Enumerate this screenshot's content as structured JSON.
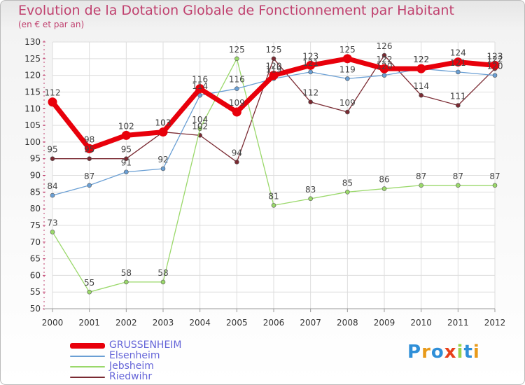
{
  "chart_data": {
    "type": "line",
    "title": "Evolution de la Dotation Globale de Fonctionnement par Habitant",
    "subtitle": "(en € et par an)",
    "xlabel": "",
    "ylabel": "",
    "x": [
      "2000",
      "2001",
      "2002",
      "2003",
      "2004",
      "2005",
      "2006",
      "2007",
      "2008",
      "2009",
      "2010",
      "2011",
      "2012"
    ],
    "ylim": [
      50,
      130
    ],
    "yticks": [
      50,
      55,
      60,
      65,
      70,
      75,
      80,
      85,
      90,
      95,
      100,
      105,
      110,
      115,
      120,
      125,
      130
    ],
    "grid": true,
    "legend": "bottom-left",
    "series": [
      {
        "name": "GRUSSENHEIM",
        "color": "#e8000b",
        "values": [
          112,
          98,
          102,
          103,
          116,
          109,
          120,
          123,
          125,
          122,
          122,
          124,
          123
        ]
      },
      {
        "name": "Elsenheim",
        "color": "#6a9fd4",
        "values": [
          84,
          87,
          91,
          92,
          114,
          116,
          119,
          121,
          119,
          120,
          122,
          121,
          120
        ]
      },
      {
        "name": "Jebsheim",
        "color": "#9ad86a",
        "values": [
          73,
          55,
          58,
          58,
          104,
          125,
          81,
          83,
          85,
          86,
          87,
          87,
          87
        ]
      },
      {
        "name": "Riedwihr",
        "color": "#7a2a32",
        "values": [
          95,
          95,
          95,
          103,
          102,
          94,
          125,
          112,
          109,
          126,
          114,
          111,
          122
        ]
      }
    ]
  },
  "logo": {
    "text": "Proxiti"
  }
}
